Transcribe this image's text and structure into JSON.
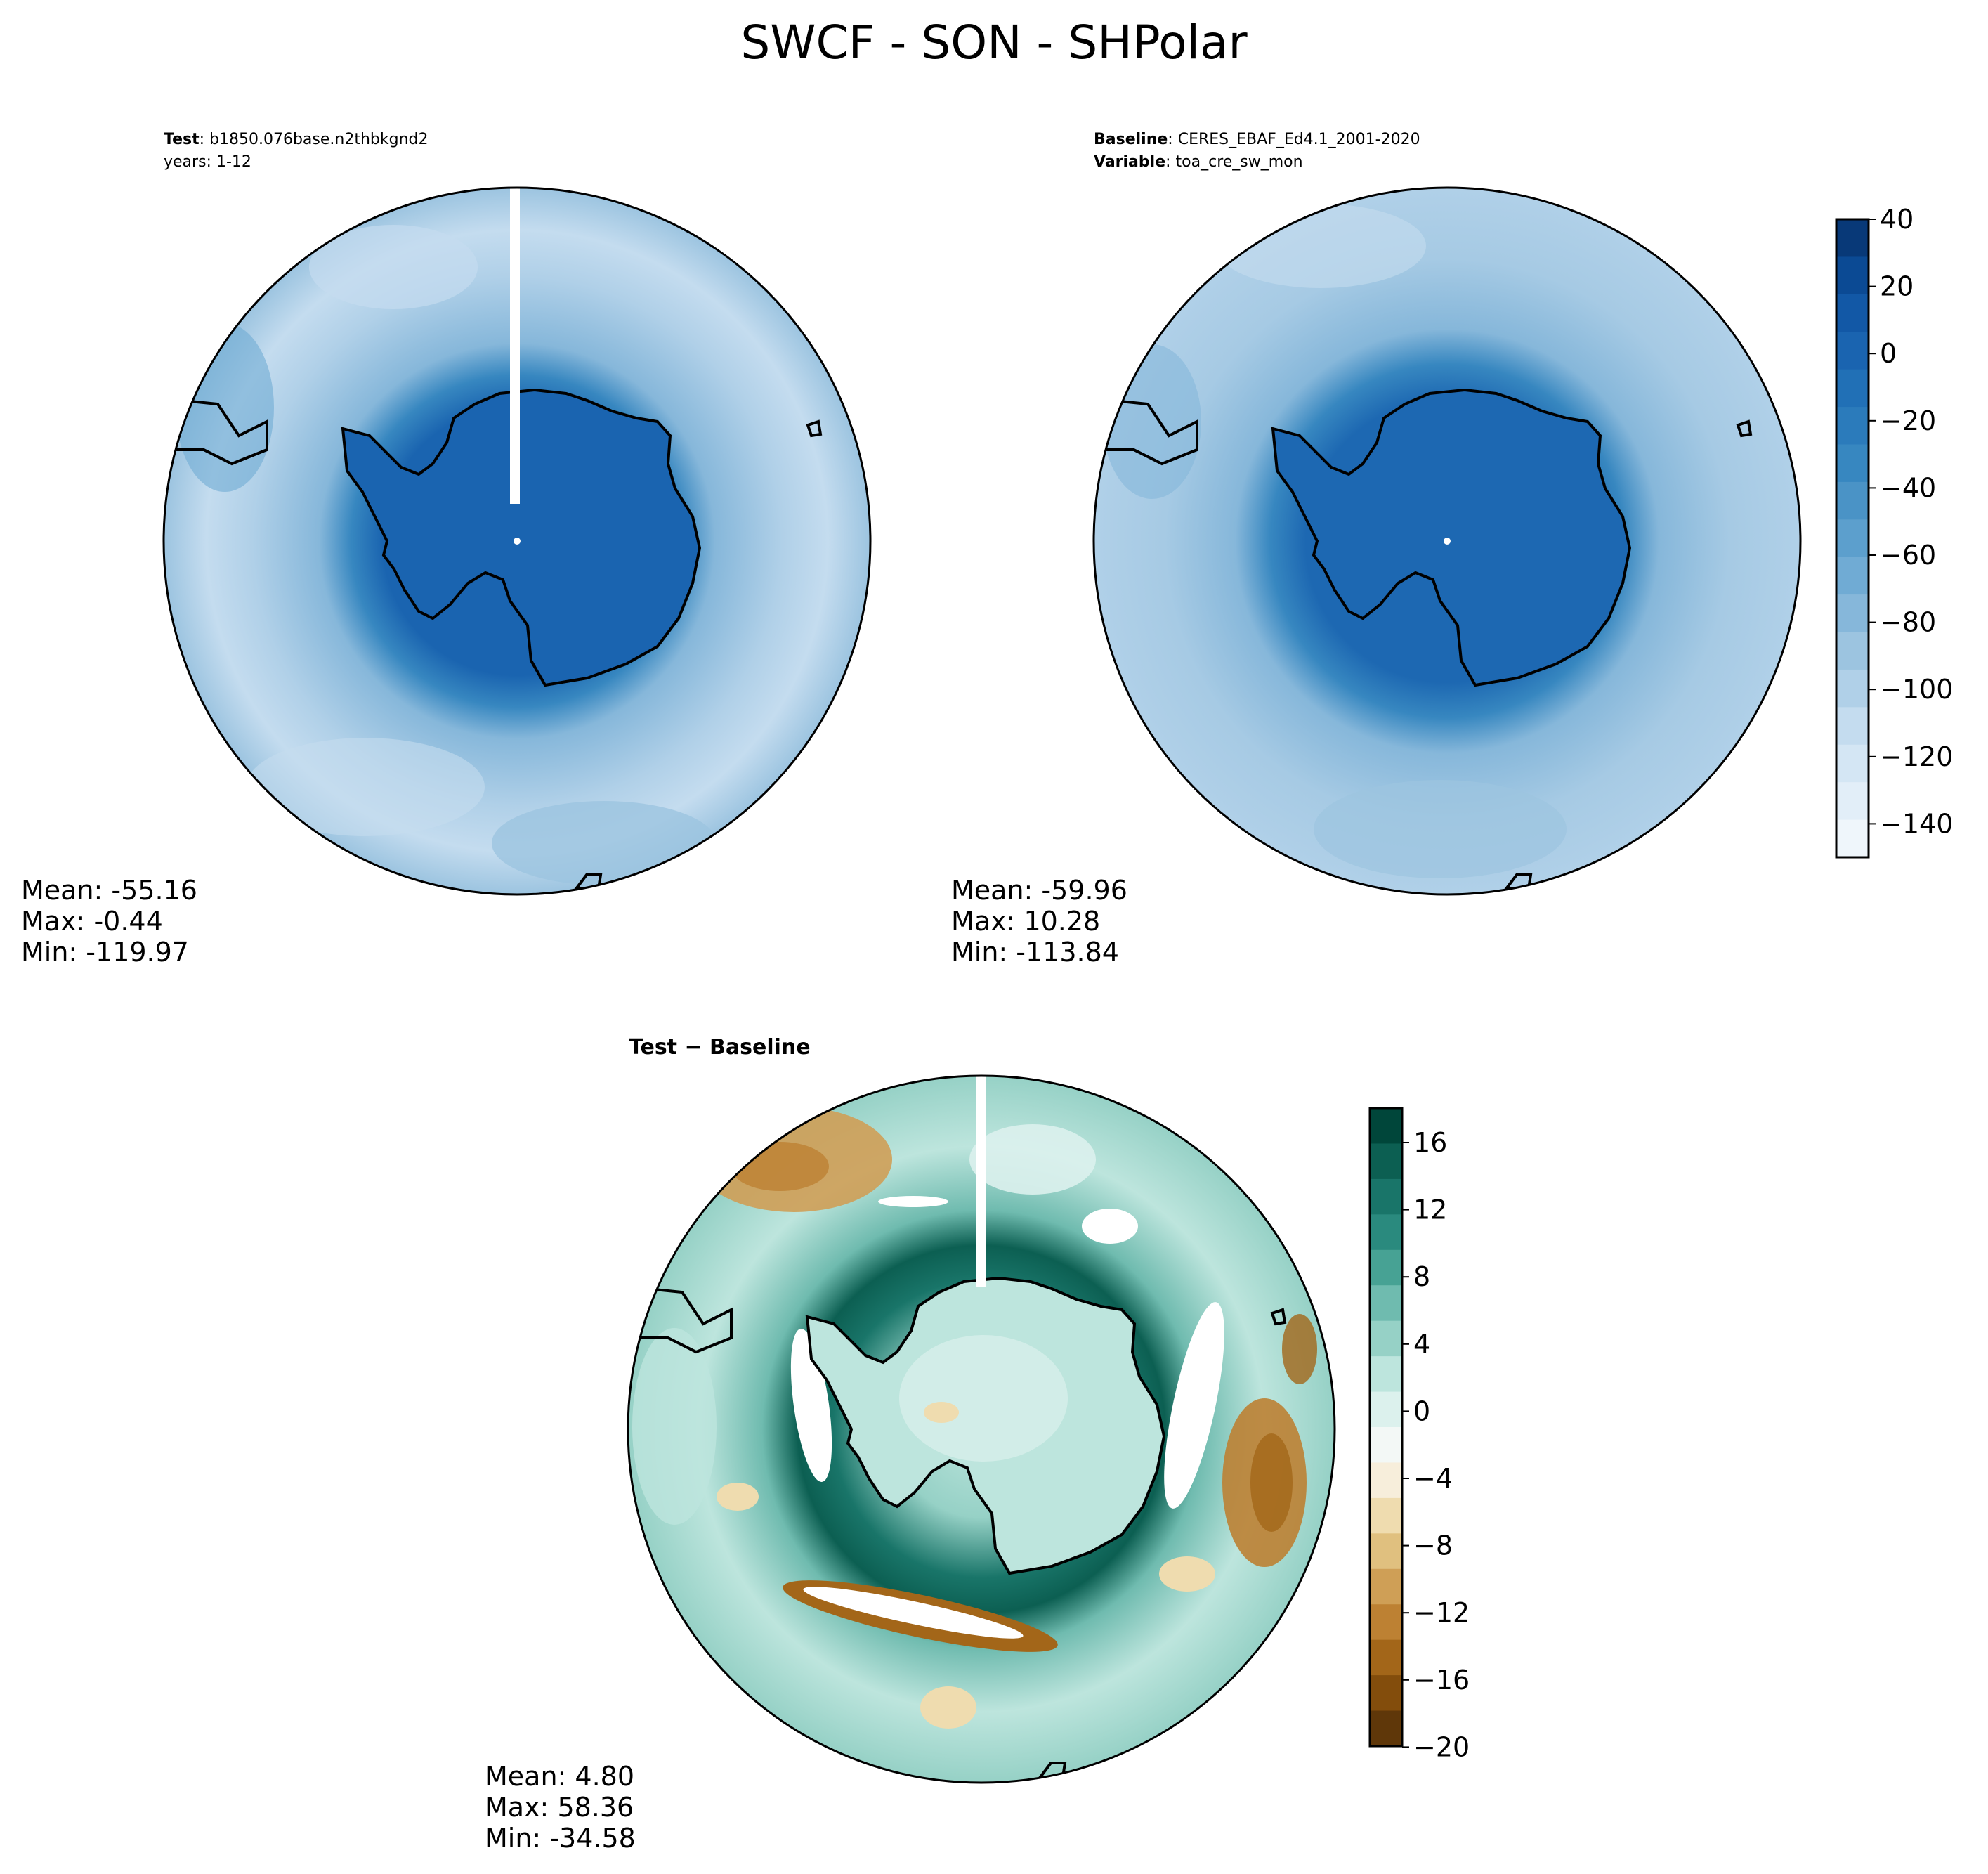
{
  "title": "SWCF - SON - SHPolar",
  "panels": {
    "test": {
      "label_bold": "Test",
      "label_value": "b1850.076base.n2thbkgnd2",
      "line2": "years: 1-12",
      "stats": {
        "mean": "Mean: -55.16",
        "max": "Max: -0.44",
        "min": "Min: -119.97"
      }
    },
    "baseline": {
      "label_bold": "Baseline",
      "label_value": "CERES_EBAF_Ed4.1_2001-2020",
      "line2_bold": "Variable",
      "line2_value": "toa_cre_sw_mon",
      "stats": {
        "mean": "Mean: -59.96",
        "max": "Max: 10.28",
        "min": "Min: -113.84"
      }
    },
    "diff": {
      "label": "Test − Baseline",
      "stats": {
        "mean": "Mean:  4.80",
        "max": "Max: 58.36",
        "min": "Min: -34.58"
      }
    }
  },
  "colorbars": {
    "main": {
      "ticks": [
        "40",
        "20",
        "0",
        "−20",
        "−40",
        "−60",
        "−80",
        "−100",
        "−120",
        "−140"
      ],
      "colors": [
        "#083978",
        "#0b4a94",
        "#1258a6",
        "#1a64b0",
        "#2170b6",
        "#2b7bbb",
        "#3787c0",
        "#4a93c6",
        "#5c9fcd",
        "#70abd4",
        "#86b7da",
        "#9cc4e0",
        "#b0d0e8",
        "#c4dcef",
        "#d4e6f4",
        "#e2eef8",
        "#eff6fb"
      ]
    },
    "diff": {
      "ticks": [
        "16",
        "12",
        "8",
        "4",
        "0",
        "−4",
        "−8",
        "−12",
        "−16",
        "−20"
      ],
      "colors": [
        "#00463a",
        "#0c5f52",
        "#197569",
        "#2a8a7e",
        "#47a294",
        "#6fbbaf",
        "#96d1c6",
        "#bde5dd",
        "#dcf1ed",
        "#f3f8f6",
        "#f7eedb",
        "#efdcaf",
        "#e0c07f",
        "#cf9f56",
        "#bd8133",
        "#a36619",
        "#834d0c",
        "#5f3709"
      ]
    }
  },
  "chart_data": [
    {
      "type": "heatmap",
      "name": "Test",
      "projection": "south polar stereographic",
      "case": "b1850.076base.n2thbkgnd2",
      "years": "1-12",
      "colorbar_range": [
        -150,
        40
      ],
      "colorbar_ticks": [
        40,
        20,
        0,
        -20,
        -40,
        -60,
        -80,
        -100,
        -120,
        -140
      ],
      "stats": {
        "mean": -55.16,
        "max": -0.44,
        "min": -119.97
      }
    },
    {
      "type": "heatmap",
      "name": "Baseline",
      "projection": "south polar stereographic",
      "case": "CERES_EBAF_Ed4.1_2001-2020",
      "variable": "toa_cre_sw_mon",
      "colorbar_range": [
        -150,
        40
      ],
      "colorbar_ticks": [
        40,
        20,
        0,
        -20,
        -40,
        -60,
        -80,
        -100,
        -120,
        -140
      ],
      "stats": {
        "mean": -59.96,
        "max": 10.28,
        "min": -113.84
      }
    },
    {
      "type": "heatmap",
      "name": "Test − Baseline",
      "projection": "south polar stereographic",
      "colorbar_range": [
        -20,
        18
      ],
      "colorbar_ticks": [
        16,
        12,
        8,
        4,
        0,
        -4,
        -8,
        -12,
        -16,
        -20
      ],
      "stats": {
        "mean": 4.8,
        "max": 58.36,
        "min": -34.58
      }
    }
  ]
}
